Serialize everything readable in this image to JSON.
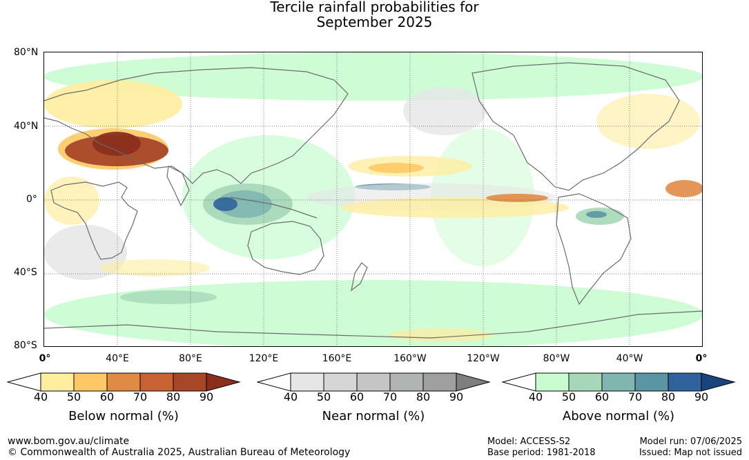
{
  "title": {
    "line1": "Tercile rainfall probabilities for",
    "line2": "September 2025"
  },
  "map": {
    "y_labels": [
      "80°N",
      "40°N",
      "0°",
      "40°S",
      "80°S"
    ],
    "x_labels": [
      "0°",
      "40°E",
      "80°E",
      "120°E",
      "160°E",
      "160°W",
      "120°W",
      "80°W",
      "40°W",
      "0°"
    ],
    "lat_range": [
      -80,
      80
    ],
    "lon_range": [
      0,
      360
    ],
    "grid": "dotted"
  },
  "colorbars": [
    {
      "name": "Below normal (%)",
      "ticks": [
        "40",
        "50",
        "60",
        "70",
        "80",
        "90"
      ],
      "colors": [
        "#ffffff",
        "#ffeda0",
        "#fec965",
        "#e08b45",
        "#c96232",
        "#a84628",
        "#8b2e1c"
      ]
    },
    {
      "name": "Near normal (%)",
      "ticks": [
        "40",
        "50",
        "60",
        "70",
        "80",
        "90"
      ],
      "colors": [
        "#ffffff",
        "#e6e6e6",
        "#d6d6d6",
        "#c5c5c5",
        "#b0b4b2",
        "#9f9f9f",
        "#7f7f7f"
      ]
    },
    {
      "name": "Above normal (%)",
      "ticks": [
        "40",
        "50",
        "60",
        "70",
        "80",
        "90"
      ],
      "colors": [
        "#ffffff",
        "#c8fcd0",
        "#a6d7b8",
        "#7fb6b0",
        "#5a95a4",
        "#30639b",
        "#18467c"
      ]
    }
  ],
  "footer": {
    "website": "www.bom.gov.au/climate",
    "copyright": "© Commonwealth of Australia 2025, Australian Bureau of Meteorology",
    "model": "Model: ACCESS-S2",
    "base_period": "Base period: 1981-2018",
    "model_run": "Model run: 07/06/2025",
    "issued": "Issued: Map not issued"
  }
}
